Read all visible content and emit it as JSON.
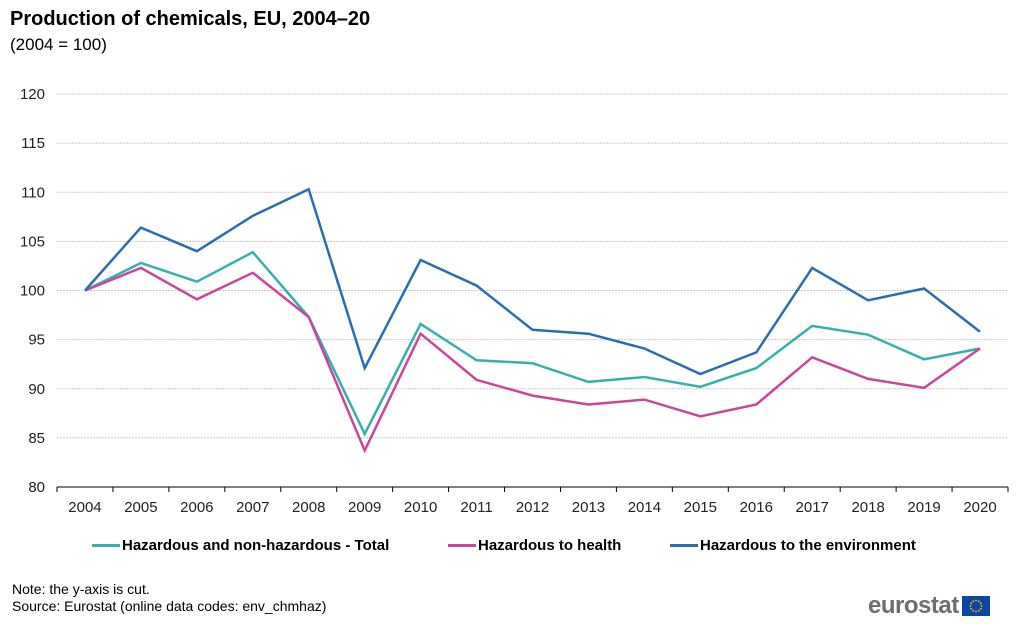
{
  "chart_data": {
    "type": "line",
    "title": "Production of chemicals, EU, 2004–20",
    "subtitle": "(2004 = 100)",
    "xlabel": "",
    "ylabel": "",
    "ylim": [
      80,
      120
    ],
    "yticks": [
      80,
      85,
      90,
      95,
      100,
      105,
      110,
      115,
      120
    ],
    "grid": true,
    "legend_position": "bottom",
    "categories": [
      "2004",
      "2005",
      "2006",
      "2007",
      "2008",
      "2009",
      "2010",
      "2011",
      "2012",
      "2013",
      "2014",
      "2015",
      "2016",
      "2017",
      "2018",
      "2019",
      "2020"
    ],
    "series": [
      {
        "name": "Hazardous and non-hazardous - Total",
        "color": "#35b0ad",
        "values": [
          100,
          102.8,
          100.9,
          103.9,
          97.3,
          85.4,
          96.6,
          92.9,
          92.6,
          90.7,
          91.2,
          90.2,
          92.1,
          96.4,
          95.5,
          93.0,
          94.1
        ]
      },
      {
        "name": "Hazardous to health",
        "color": "#c8479b",
        "values": [
          100,
          102.3,
          99.1,
          101.8,
          97.3,
          83.7,
          95.6,
          90.9,
          89.3,
          88.4,
          88.9,
          87.2,
          88.4,
          93.2,
          91.0,
          90.1,
          94.1
        ]
      },
      {
        "name": "Hazardous to the environment",
        "color": "#2a6db3",
        "values": [
          100,
          106.4,
          104.0,
          107.6,
          110.3,
          92.1,
          103.1,
          100.5,
          96.0,
          95.6,
          94.1,
          91.5,
          93.7,
          102.3,
          99.0,
          100.2,
          95.8
        ]
      }
    ]
  },
  "footer": {
    "note": "Note: the y-axis is cut.",
    "source": "Source: Eurostat (online data codes: env_chmhaz)",
    "logo_text": "eurostat"
  }
}
